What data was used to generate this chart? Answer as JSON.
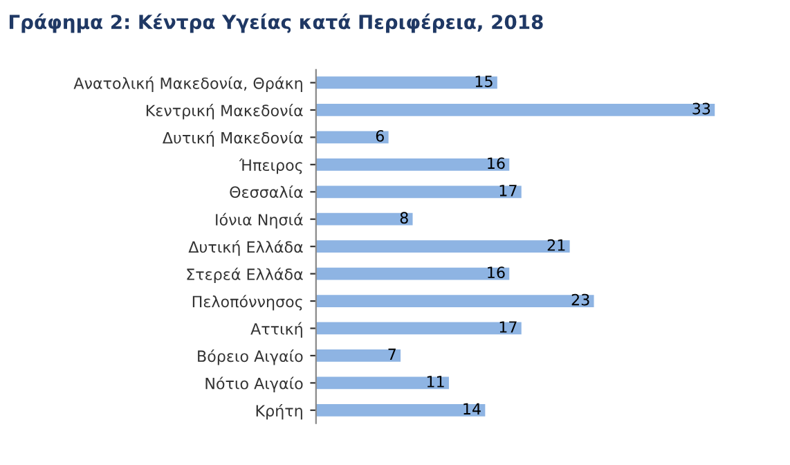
{
  "chart_data": {
    "type": "bar",
    "orientation": "horizontal",
    "title": "Γράφημα 2: Κέντρα Υγείας κατά Περιφέρεια, 2018",
    "categories": [
      "Ανατολική Μακεδονία, Θράκη",
      "Κεντρική Μακεδονία",
      "Δυτική Μακεδονία",
      "Ήπειρος",
      "Θεσσαλία",
      "Ιόνια Νησιά",
      "Δυτική Ελλάδα",
      "Στερεά Ελλάδα",
      "Πελοπόννησος",
      "Αττική",
      "Βόρειο Αιγαίο",
      "Νότιο Αιγαίο",
      "Κρήτη"
    ],
    "values": [
      15,
      33,
      6,
      16,
      17,
      8,
      21,
      16,
      23,
      17,
      7,
      11,
      14
    ],
    "color": "#8eb4e3",
    "data_labels": true,
    "tick_labels": "y",
    "grid": false,
    "legend": false
  }
}
